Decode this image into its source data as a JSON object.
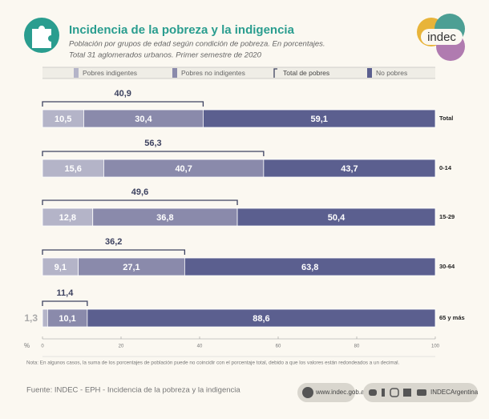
{
  "logo_text": "indec",
  "chart_data": {
    "type": "stacked-bar-horizontal",
    "title": "Incidencia de la pobreza y la indigencia",
    "subtitle": [
      "Población por grupos de edad según condición de pobreza. En porcentajes.",
      "Total 31 aglomerados urbanos. Primer semestre de 2020"
    ],
    "categories": [
      "Total",
      "0-14",
      "15-29",
      "30-64",
      "65 y más"
    ],
    "series": [
      {
        "name": "Pobres indigentes",
        "color": "#b4b4c8",
        "values": [
          10.5,
          15.6,
          12.8,
          9.1,
          1.3
        ],
        "value_labels": [
          "10,5",
          "15,6",
          "12,8",
          "9,1",
          "1,3"
        ]
      },
      {
        "name": "Pobres no indigentes",
        "color": "#8a8aab",
        "values": [
          30.4,
          40.7,
          36.8,
          27.1,
          10.1
        ],
        "value_labels": [
          "30,4",
          "40,7",
          "36,8",
          "27,1",
          "10,1"
        ]
      },
      {
        "name": "No pobres",
        "color": "#5b5f8f",
        "values": [
          59.1,
          43.7,
          50.4,
          63.8,
          88.6
        ],
        "value_labels": [
          "59,1",
          "43,7",
          "50,4",
          "63,8",
          "88,6"
        ]
      }
    ],
    "totals": {
      "name": "Total de pobres",
      "color": "#3d4260",
      "values": [
        40.9,
        56.3,
        49.6,
        36.2,
        11.4
      ],
      "value_labels": [
        "40,9",
        "56,3",
        "49,6",
        "36,2",
        "11,4"
      ]
    },
    "x_label": "%",
    "xlim": [
      0,
      100
    ],
    "xticks": [
      0,
      20,
      40,
      60,
      80,
      100
    ],
    "note": "Nota: En algunos casos, la suma de los porcentajes de población puede no coincidir con el porcentaje total, debido a que los valores están redondeados a un decimal.",
    "source": "Fuente: INDEC - EPH - Incidencia de la pobreza y la indigencia",
    "website": "www.indec.gob.ar",
    "social": "INDECArgentina"
  }
}
